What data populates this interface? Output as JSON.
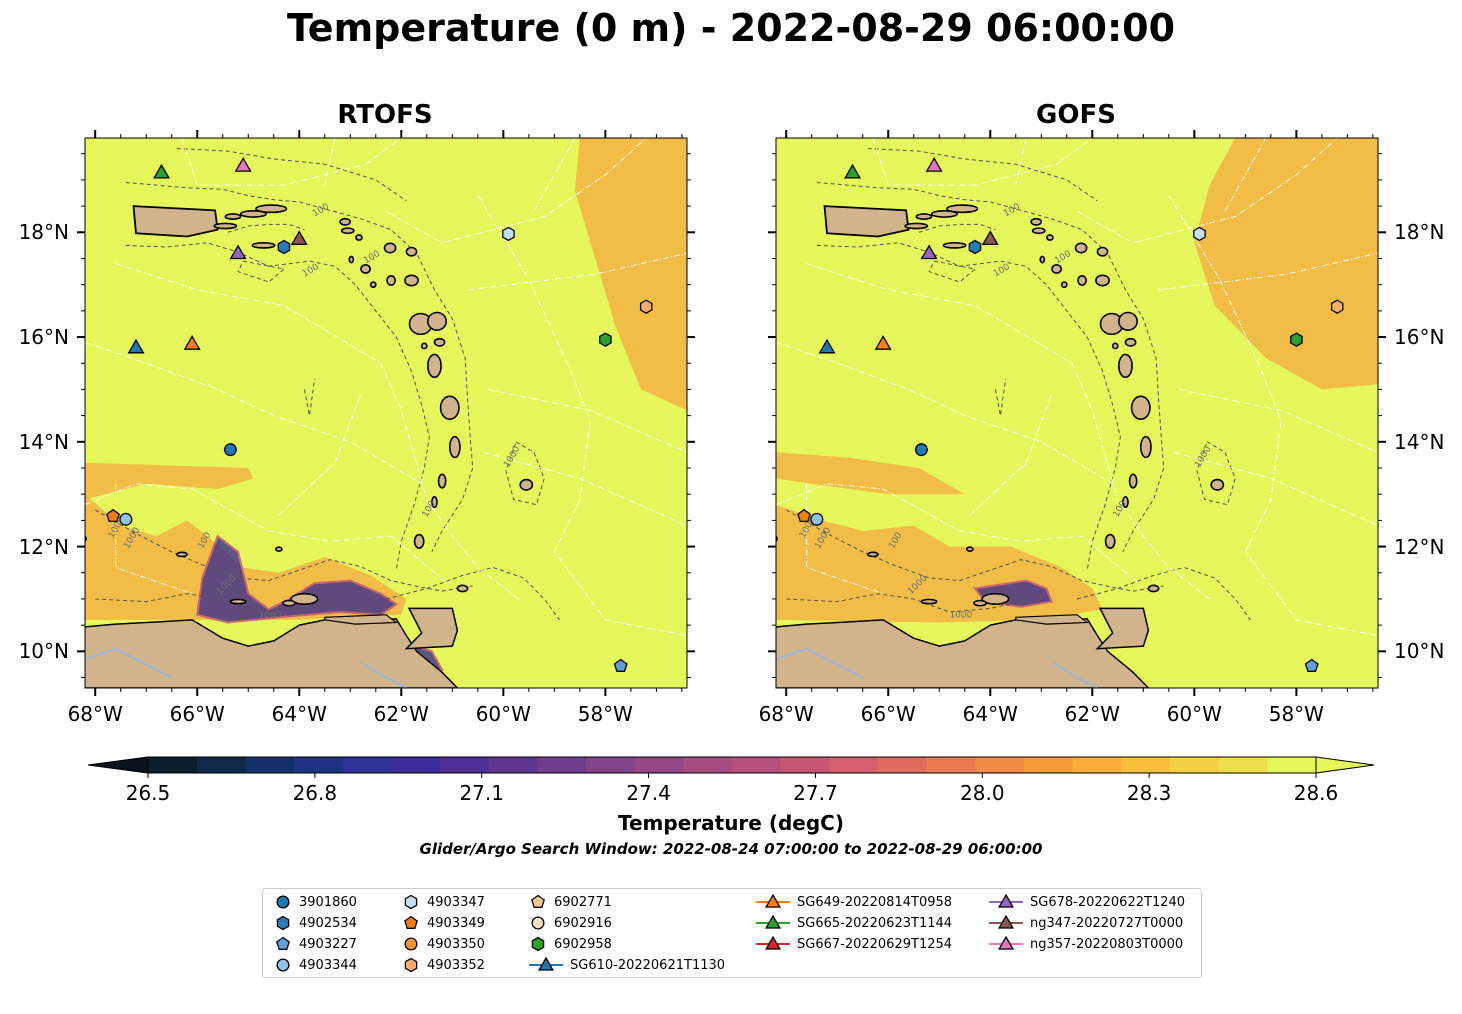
{
  "title": "Temperature (0 m) - 2022-08-29 06:00:00",
  "panels": [
    {
      "title": "RTOFS",
      "model": "rtofs"
    },
    {
      "title": "GOFS",
      "model": "gofs"
    }
  ],
  "map": {
    "lon_range": [
      -68.2,
      -56.4
    ],
    "lat_range": [
      9.3,
      19.8
    ],
    "lon_ticks": [
      {
        "value": -68,
        "label": "68°W"
      },
      {
        "value": -66,
        "label": "66°W"
      },
      {
        "value": -64,
        "label": "64°W"
      },
      {
        "value": -62,
        "label": "62°W"
      },
      {
        "value": -60,
        "label": "60°W"
      },
      {
        "value": -58,
        "label": "58°W"
      }
    ],
    "lat_ticks": [
      {
        "value": 18,
        "label": "18°N"
      },
      {
        "value": 16,
        "label": "16°N"
      },
      {
        "value": 14,
        "label": "14°N"
      },
      {
        "value": 12,
        "label": "12°N"
      },
      {
        "value": 10,
        "label": "10°N"
      }
    ],
    "colors": {
      "land": "#d2b48c",
      "ocean_warm": "#e5f75a",
      "ocean_orange": "#f4a940",
      "ocean_cool": "#3d2d8a",
      "eez_line": "#ffffff",
      "bathy_contour": "#555555",
      "river": "#9eb6d4"
    },
    "contour_labels": [
      "1000",
      "100"
    ]
  },
  "colorbar": {
    "label": "Temperature (degC)",
    "min": 26.5,
    "max": 28.6,
    "ticks": [
      "26.5",
      "26.8",
      "27.1",
      "27.4",
      "27.7",
      "28.0",
      "28.3",
      "28.6"
    ],
    "colors": [
      "#0a1e2e",
      "#10284a",
      "#152f6a",
      "#1f3283",
      "#2d3296",
      "#3d2d9a",
      "#4f2f96",
      "#5f3790",
      "#703e8c",
      "#824388",
      "#944784",
      "#a64c80",
      "#b6507a",
      "#c55775",
      "#d4606d",
      "#e06c60",
      "#ea7b52",
      "#f08c45",
      "#f59c3a",
      "#f8ad38",
      "#f8bf3a",
      "#f3d042",
      "#ecdf4a",
      "#e5f75a"
    ]
  },
  "search_window": "Glider/Argo Search Window: 2022-08-24 07:00:00 to 2022-08-29 06:00:00",
  "legend": [
    {
      "label": "3901860",
      "marker": "circle",
      "color": "#1f77b4"
    },
    {
      "label": "4902534",
      "marker": "hexagon",
      "color": "#2d7bb5"
    },
    {
      "label": "4903227",
      "marker": "pentagon",
      "color": "#5fa0d8"
    },
    {
      "label": "4903344",
      "marker": "circle",
      "color": "#8fc3ea"
    },
    {
      "label": "4903347",
      "marker": "hexagon",
      "color": "#c6e0f7"
    },
    {
      "label": "4903349",
      "marker": "pentagon",
      "color": "#f07d0f"
    },
    {
      "label": "4903350",
      "marker": "circle",
      "color": "#fb9234"
    },
    {
      "label": "4903352",
      "marker": "hexagon",
      "color": "#fdae6b"
    },
    {
      "label": "6902771",
      "marker": "pentagon",
      "color": "#fdc894"
    },
    {
      "label": "6902916",
      "marker": "circle",
      "color": "#fde0c5"
    },
    {
      "label": "6902958",
      "marker": "hexagon",
      "color": "#2ca02c"
    },
    {
      "label": "SG610-20220621T1130",
      "marker": "triangle-line",
      "color": "#1f77b4"
    },
    {
      "label": "SG649-20220814T0958",
      "marker": "triangle-line",
      "color": "#ff7f0e"
    },
    {
      "label": "SG665-20220623T1144",
      "marker": "triangle-line",
      "color": "#2ca02c"
    },
    {
      "label": "SG667-20220629T1254",
      "marker": "triangle-line",
      "color": "#d62728"
    },
    {
      "label": "SG678-20220622T1240",
      "marker": "triangle-line",
      "color": "#9467bd"
    },
    {
      "label": "ng347-20220727T0000",
      "marker": "triangle-line",
      "color": "#8c564b"
    },
    {
      "label": "ng357-20220803T0000",
      "marker": "triangle-line",
      "color": "#e377c2"
    }
  ],
  "observations": [
    {
      "id": "3901860",
      "lon": -65.35,
      "lat": 13.85,
      "marker": "circle",
      "color": "#1f77b4"
    },
    {
      "id": "4902534",
      "lon": -64.3,
      "lat": 17.72,
      "marker": "hexagon",
      "color": "#2d7bb5"
    },
    {
      "id": "4903227",
      "lon": -57.7,
      "lat": 9.72,
      "marker": "pentagon",
      "color": "#5fa0d8"
    },
    {
      "id": "4903344",
      "lon": -67.4,
      "lat": 12.52,
      "marker": "circle",
      "color": "#8fc3ea"
    },
    {
      "id": "4903347",
      "lon": -59.9,
      "lat": 17.97,
      "marker": "hexagon",
      "color": "#c6e0f7"
    },
    {
      "id": "4903349",
      "lon": -67.65,
      "lat": 12.58,
      "marker": "pentagon",
      "color": "#f07d0f"
    },
    {
      "id": "4903352",
      "lon": -57.2,
      "lat": 16.58,
      "marker": "hexagon",
      "color": "#fdae6b"
    },
    {
      "id": "6902958",
      "lon": -58.0,
      "lat": 15.95,
      "marker": "hexagon",
      "color": "#2ca02c"
    },
    {
      "id": "SG610-20220621T1130",
      "lon": -67.2,
      "lat": 15.78,
      "marker": "triangle",
      "color": "#1f77b4"
    },
    {
      "id": "SG649-20220814T0958",
      "lon": -66.1,
      "lat": 15.85,
      "marker": "triangle",
      "color": "#ff7f0e"
    },
    {
      "id": "SG665-20220623T1144",
      "lon": -66.7,
      "lat": 19.12,
      "marker": "triangle",
      "color": "#2ca02c"
    },
    {
      "id": "SG678-20220622T1240",
      "lon": -65.2,
      "lat": 17.58,
      "marker": "triangle",
      "color": "#9467bd"
    },
    {
      "id": "ng347-20220727T0000",
      "lon": -64.0,
      "lat": 17.85,
      "marker": "triangle",
      "color": "#8c564b"
    },
    {
      "id": "ng357-20220803T0000",
      "lon": -65.1,
      "lat": 19.25,
      "marker": "triangle",
      "color": "#e377c2"
    }
  ]
}
